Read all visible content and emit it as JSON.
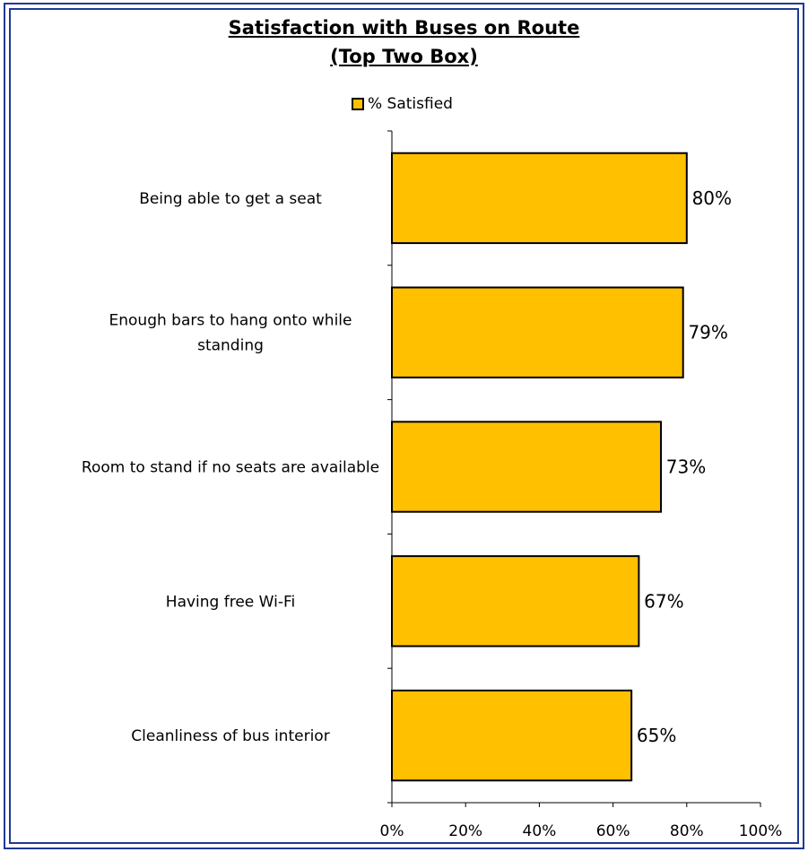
{
  "chart_data": {
    "type": "bar",
    "orientation": "horizontal",
    "title": "Satisfaction with Buses on Route",
    "subtitle": "(Top Two Box)",
    "categories": [
      "Being able to get a seat",
      "Enough bars to hang onto while standing",
      "Room to stand if no seats are available",
      "Having free Wi-Fi",
      "Cleanliness of bus interior"
    ],
    "category_label_lines": [
      [
        "Being able to get a seat"
      ],
      [
        "Enough bars to hang onto while",
        "standing"
      ],
      [
        "Room to stand if no seats are available"
      ],
      [
        "Having free Wi-Fi"
      ],
      [
        "Cleanliness of bus interior"
      ]
    ],
    "series": [
      {
        "name": "% Satisfied",
        "values": [
          80,
          79,
          73,
          67,
          65
        ],
        "color": "#ffc000"
      }
    ],
    "data_labels": [
      "80%",
      "79%",
      "73%",
      "67%",
      "65%"
    ],
    "x_ticks": [
      "0%",
      "20%",
      "40%",
      "60%",
      "80%",
      "100%"
    ],
    "xlim": [
      0,
      100
    ],
    "xlabel": "",
    "ylabel": "",
    "grid": false,
    "legend_position": "top"
  }
}
